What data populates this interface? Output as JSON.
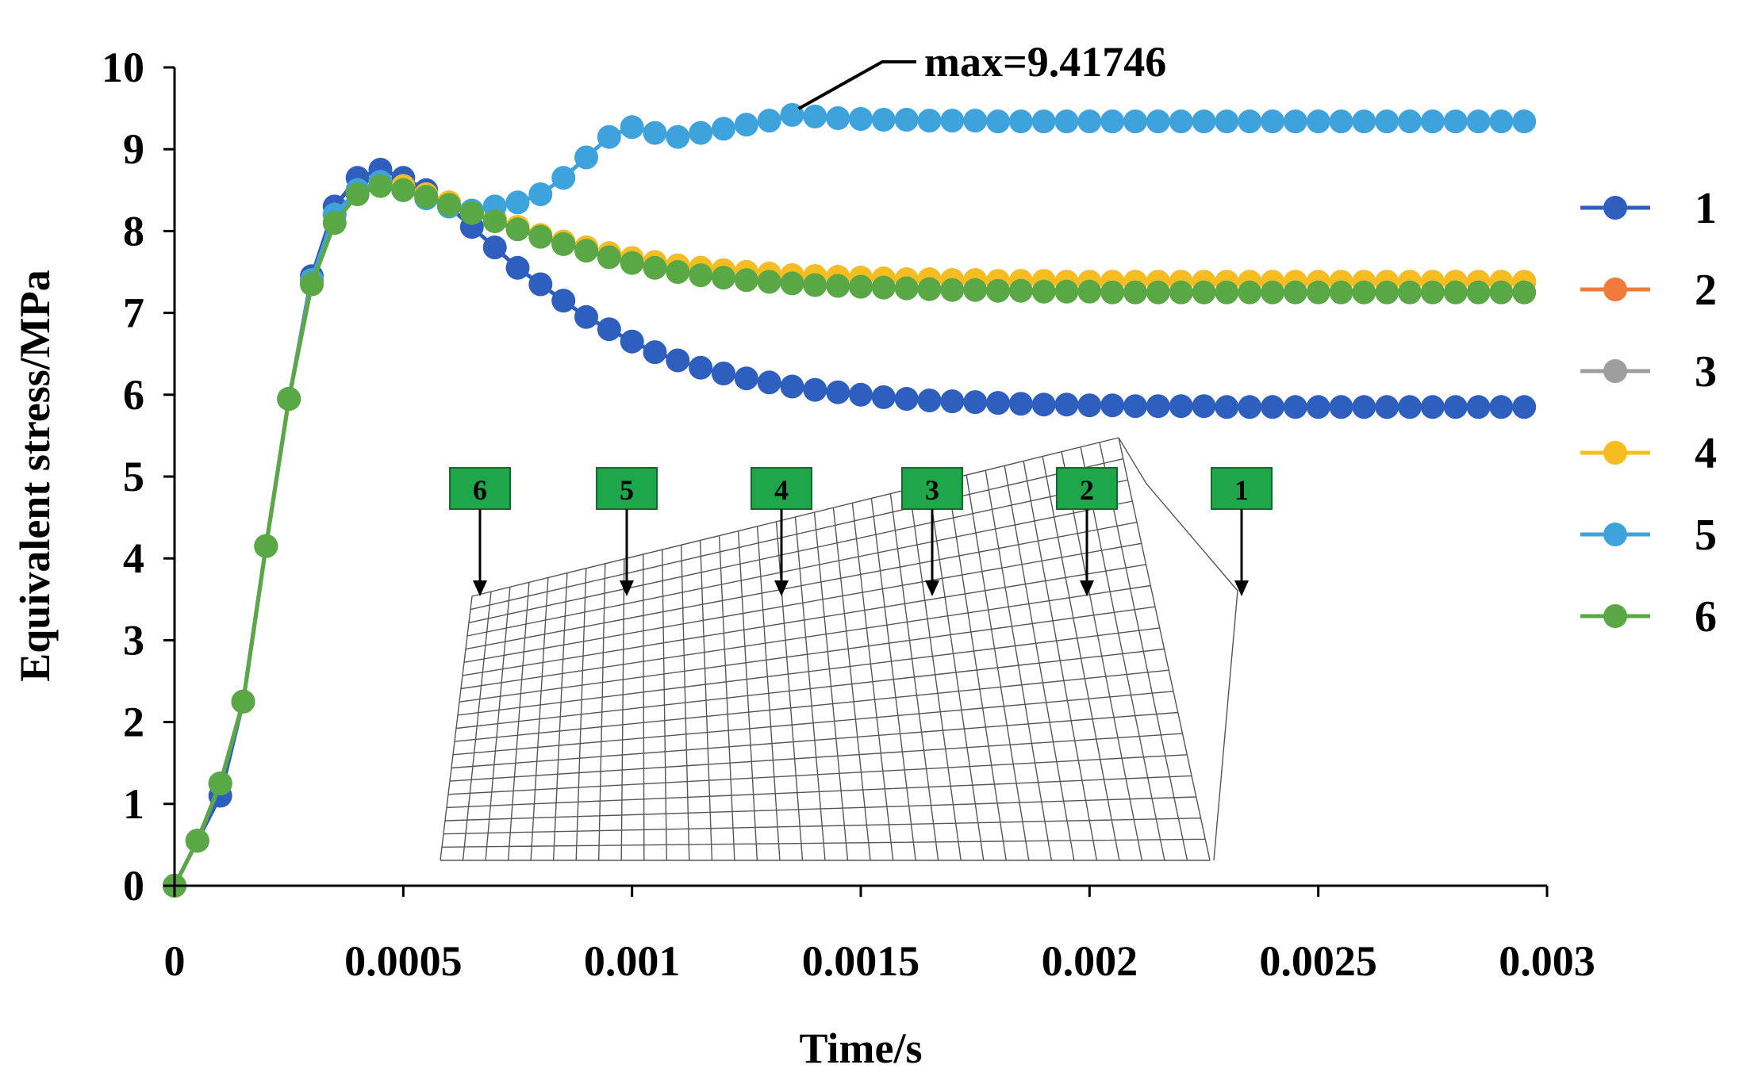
{
  "chart_data": {
    "type": "line",
    "title": "",
    "xlabel": "Time/s",
    "ylabel": "Equivalent stress/MPa",
    "xlim": [
      0,
      0.003
    ],
    "ylim": [
      0,
      10
    ],
    "xticks": [
      0,
      0.0005,
      0.001,
      0.0015,
      0.002,
      0.0025,
      0.003
    ],
    "xtick_labels": [
      "0",
      "0.0005",
      "0.001",
      "0.0015",
      "0.002",
      "0.0025",
      "0.003"
    ],
    "yticks": [
      0,
      1,
      2,
      3,
      4,
      5,
      6,
      7,
      8,
      9,
      10
    ],
    "ytick_labels": [
      "0",
      "1",
      "2",
      "3",
      "4",
      "5",
      "6",
      "7",
      "8",
      "9",
      "10"
    ],
    "grid": false,
    "legend_position": "right",
    "x": [
      0,
      5e-05,
      0.0001,
      0.00015,
      0.0002,
      0.00025,
      0.0003,
      0.00035,
      0.0004,
      0.00045,
      0.0005,
      0.00055,
      0.0006,
      0.00065,
      0.0007,
      0.00075,
      0.0008,
      0.00085,
      0.0009,
      0.00095,
      0.001,
      0.00105,
      0.0011,
      0.00115,
      0.0012,
      0.00125,
      0.0013,
      0.00135,
      0.0014,
      0.00145,
      0.0015,
      0.00155,
      0.0016,
      0.00165,
      0.0017,
      0.00175,
      0.0018,
      0.00185,
      0.0019,
      0.00195,
      0.002,
      0.00205,
      0.0021,
      0.00215,
      0.0022,
      0.00225,
      0.0023,
      0.00235,
      0.0024,
      0.00245,
      0.0025,
      0.00255,
      0.0026,
      0.00265,
      0.0027,
      0.00275,
      0.0028,
      0.00285,
      0.0029,
      0.00295
    ],
    "series": [
      {
        "name": "1",
        "color": "#2e5fbf",
        "values": [
          0,
          0.55,
          1.1,
          2.25,
          4.15,
          5.95,
          7.45,
          8.3,
          8.65,
          8.75,
          8.65,
          8.5,
          8.3,
          8.05,
          7.8,
          7.55,
          7.35,
          7.15,
          6.95,
          6.8,
          6.65,
          6.52,
          6.42,
          6.33,
          6.26,
          6.2,
          6.15,
          6.1,
          6.06,
          6.03,
          6.0,
          5.97,
          5.95,
          5.93,
          5.92,
          5.91,
          5.9,
          5.89,
          5.88,
          5.88,
          5.87,
          5.87,
          5.86,
          5.86,
          5.86,
          5.86,
          5.85,
          5.85,
          5.85,
          5.85,
          5.85,
          5.85,
          5.85,
          5.85,
          5.85,
          5.85,
          5.85,
          5.85,
          5.85,
          5.85
        ]
      },
      {
        "name": "2",
        "color": "#f07a3a",
        "values": [
          0,
          0.55,
          1.25,
          2.25,
          4.15,
          5.95,
          7.4,
          8.2,
          8.5,
          8.6,
          8.55,
          8.45,
          8.35,
          8.25,
          8.15,
          8.05,
          7.95,
          7.87,
          7.8,
          7.73,
          7.67,
          7.62,
          7.58,
          7.55,
          7.52,
          7.5,
          7.48,
          7.46,
          7.45,
          7.44,
          7.43,
          7.42,
          7.41,
          7.41,
          7.4,
          7.4,
          7.39,
          7.39,
          7.39,
          7.38,
          7.38,
          7.38,
          7.38,
          7.38,
          7.38,
          7.38,
          7.38,
          7.38,
          7.38,
          7.38,
          7.38,
          7.38,
          7.38,
          7.38,
          7.38,
          7.38,
          7.38,
          7.38,
          7.38,
          7.38
        ]
      },
      {
        "name": "3",
        "color": "#9e9e9e",
        "values": [
          0,
          0.55,
          1.25,
          2.25,
          4.15,
          5.95,
          7.4,
          8.2,
          8.5,
          8.6,
          8.55,
          8.45,
          8.35,
          8.25,
          8.15,
          8.05,
          7.95,
          7.87,
          7.8,
          7.73,
          7.67,
          7.62,
          7.58,
          7.55,
          7.52,
          7.5,
          7.48,
          7.46,
          7.45,
          7.44,
          7.43,
          7.42,
          7.41,
          7.41,
          7.4,
          7.4,
          7.39,
          7.39,
          7.39,
          7.38,
          7.38,
          7.38,
          7.38,
          7.38,
          7.38,
          7.38,
          7.38,
          7.38,
          7.38,
          7.38,
          7.38,
          7.38,
          7.38,
          7.38,
          7.38,
          7.38,
          7.38,
          7.38,
          7.38,
          7.38
        ]
      },
      {
        "name": "4",
        "color": "#f5bd1f",
        "values": [
          0,
          0.55,
          1.25,
          2.25,
          4.15,
          5.95,
          7.4,
          8.2,
          8.5,
          8.6,
          8.55,
          8.45,
          8.35,
          8.25,
          8.15,
          8.05,
          7.95,
          7.87,
          7.8,
          7.73,
          7.67,
          7.62,
          7.58,
          7.55,
          7.52,
          7.5,
          7.48,
          7.46,
          7.45,
          7.44,
          7.43,
          7.42,
          7.41,
          7.41,
          7.4,
          7.4,
          7.39,
          7.39,
          7.39,
          7.38,
          7.38,
          7.38,
          7.38,
          7.38,
          7.38,
          7.38,
          7.38,
          7.38,
          7.38,
          7.38,
          7.38,
          7.38,
          7.38,
          7.38,
          7.38,
          7.38,
          7.38,
          7.38,
          7.38,
          7.38
        ]
      },
      {
        "name": "5",
        "color": "#3ea2dc",
        "values": [
          0,
          0.55,
          1.25,
          2.25,
          4.15,
          5.95,
          7.4,
          8.2,
          8.5,
          8.6,
          8.5,
          8.4,
          8.3,
          8.25,
          8.3,
          8.35,
          8.45,
          8.65,
          8.9,
          9.15,
          9.27,
          9.2,
          9.15,
          9.2,
          9.25,
          9.3,
          9.35,
          9.42,
          9.4,
          9.38,
          9.37,
          9.36,
          9.36,
          9.35,
          9.35,
          9.35,
          9.34,
          9.34,
          9.34,
          9.34,
          9.34,
          9.34,
          9.34,
          9.34,
          9.34,
          9.34,
          9.34,
          9.34,
          9.34,
          9.34,
          9.34,
          9.34,
          9.34,
          9.34,
          9.34,
          9.34,
          9.34,
          9.34,
          9.34,
          9.34
        ]
      },
      {
        "name": "6",
        "color": "#5aa845",
        "values": [
          0,
          0.55,
          1.25,
          2.25,
          4.15,
          5.95,
          7.35,
          8.1,
          8.45,
          8.55,
          8.5,
          8.42,
          8.32,
          8.22,
          8.12,
          8.02,
          7.93,
          7.84,
          7.76,
          7.68,
          7.61,
          7.55,
          7.5,
          7.46,
          7.43,
          7.4,
          7.38,
          7.36,
          7.34,
          7.33,
          7.32,
          7.31,
          7.3,
          7.29,
          7.28,
          7.28,
          7.27,
          7.27,
          7.26,
          7.26,
          7.26,
          7.25,
          7.25,
          7.25,
          7.25,
          7.25,
          7.25,
          7.25,
          7.25,
          7.25,
          7.25,
          7.25,
          7.25,
          7.25,
          7.25,
          7.25,
          7.25,
          7.25,
          7.25,
          7.25
        ]
      }
    ],
    "annotations": [
      {
        "text": "max=9.41746",
        "x": 0.00135,
        "y": 9.41746
      }
    ],
    "inset": {
      "description_visible": "mesh model",
      "node_labels": [
        "6",
        "5",
        "4",
        "3",
        "2",
        "1"
      ],
      "label_color": "#1ea64b"
    }
  }
}
